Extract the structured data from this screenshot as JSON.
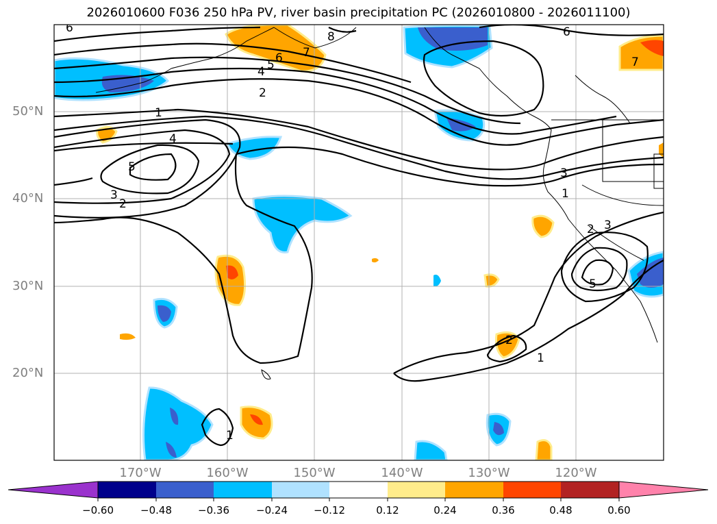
{
  "title": "2026010600 F036 250 hPa PV, river basin precipitation PC (2026010800 - 2026011100)",
  "lat_labels": [
    "50°N",
    "40°N",
    "30°N",
    "20°N"
  ],
  "lon_labels": [
    "170°W",
    "160°W",
    "150°W",
    "140°W",
    "130°W",
    "120°W"
  ],
  "colorbar": {
    "ticks": [
      "−0.60",
      "−0.48",
      "−0.36",
      "−0.24",
      "−0.12",
      "0.12",
      "0.24",
      "0.36",
      "0.48",
      "0.60"
    ],
    "colors": [
      "#9a32cd",
      "#00008b",
      "#3a5fcd",
      "#00bfff",
      "#b0e2ff",
      "#ffffff",
      "#ffec8b",
      "#ffa500",
      "#ff4500",
      "#b22222",
      "#ff82ab"
    ]
  },
  "contour_labels": [
    "6",
    "8",
    "7",
    "6",
    "5",
    "4",
    "2",
    "1",
    "4",
    "5",
    "3",
    "2",
    "6",
    "7",
    "3",
    "1",
    "2",
    "3",
    "5",
    "2",
    "1",
    "1"
  ],
  "colors": {
    "positive": "#ffa500",
    "positive_light": "#ffec8b",
    "positive_strong": "#ff4500",
    "negative": "#00bfff",
    "negative_light": "#b0e2ff",
    "negative_strong": "#3a5fcd"
  }
}
